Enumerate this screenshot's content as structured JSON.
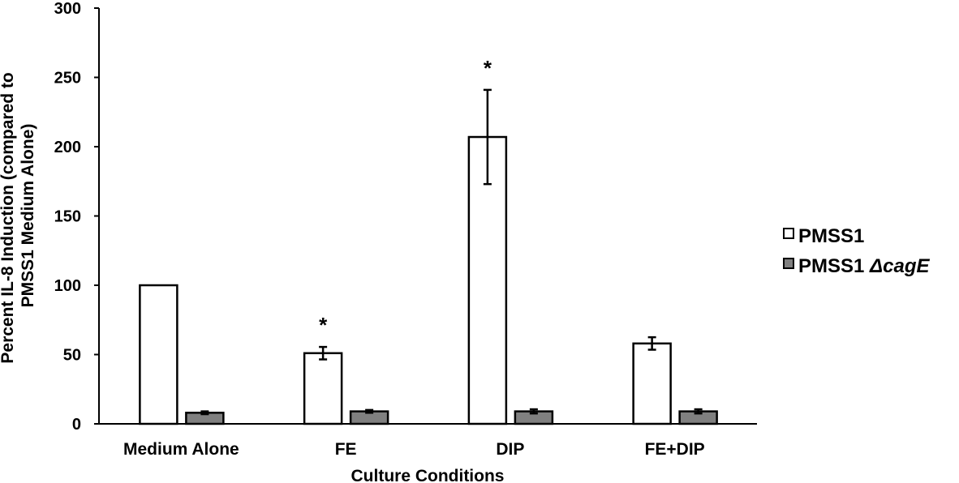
{
  "chart_data": {
    "type": "bar",
    "title": "",
    "xlabel": "Culture Conditions",
    "ylabel_lines": [
      "Percent IL-8 Induction (compared to",
      "PMSS1 Medium Alone)"
    ],
    "ylim": [
      0,
      300
    ],
    "yticks": [
      0,
      50,
      100,
      150,
      200,
      250,
      300
    ],
    "categories": [
      "Medium Alone",
      "FE",
      "DIP",
      "FE+DIP"
    ],
    "series": [
      {
        "name": "PMSS1",
        "name_plain": "PMSS1",
        "name_italic": "",
        "fill": "#ffffff",
        "values": [
          100,
          51,
          207,
          58
        ],
        "errors": [
          0,
          4.5,
          34,
          4.5
        ]
      },
      {
        "name": "PMSS1 ΔcagE",
        "name_plain": "PMSS1 ",
        "name_italic": "ΔcagE",
        "fill": "#808080",
        "values": [
          8,
          9,
          9,
          9
        ],
        "errors": [
          1,
          1,
          1.5,
          1.5
        ]
      }
    ],
    "annotations": [
      {
        "text": "*",
        "category": "FE",
        "series": "PMSS1"
      },
      {
        "text": "*",
        "category": "DIP",
        "series": "PMSS1"
      }
    ],
    "legend_position": "right",
    "grid": false
  }
}
